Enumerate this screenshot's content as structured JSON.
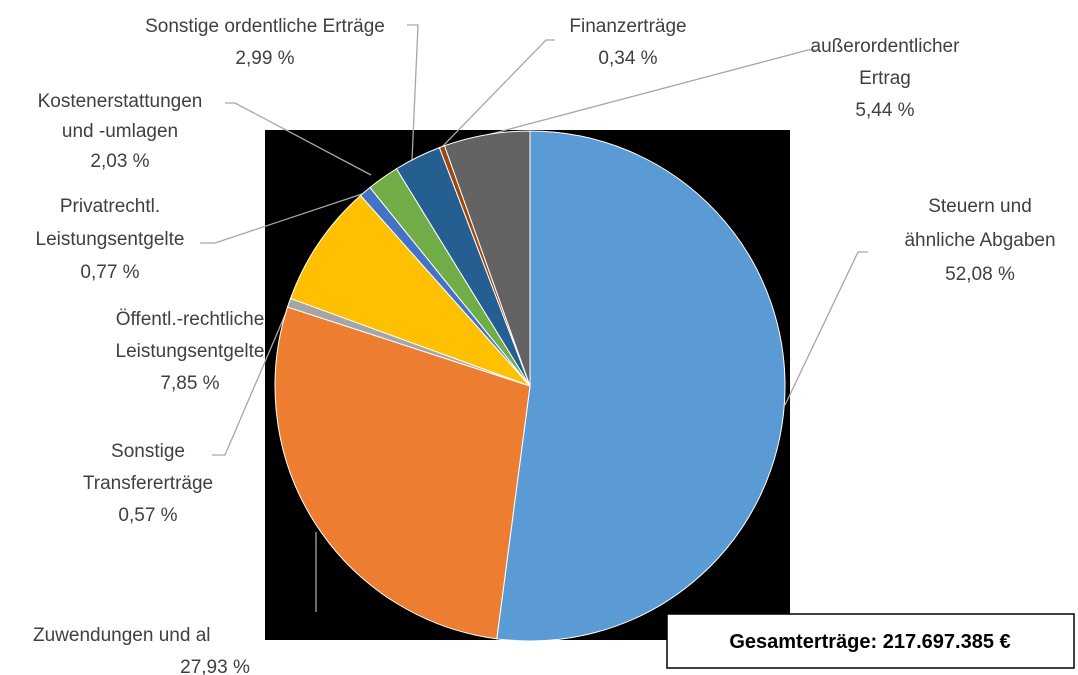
{
  "chart_data": {
    "type": "pie",
    "categories": [
      [
        "Steuern und",
        "ähnliche Abgaben"
      ],
      [
        "Zuwendungen und al"
      ],
      [
        "Sonstige",
        "Transfererträge"
      ],
      [
        "Öffentl.-rechtliche",
        "Leistungsentgelte"
      ],
      [
        "Privatrechtl.",
        "Leistungsentgelte"
      ],
      [
        "Kostenerstattungen",
        "und -umlagen"
      ],
      [
        "Sonstige ordentliche Erträge"
      ],
      [
        "Finanzerträge"
      ],
      [
        "außerordentlicher",
        "Ertrag"
      ]
    ],
    "values": [
      52.08,
      27.93,
      0.57,
      7.85,
      0.77,
      2.03,
      2.99,
      0.34,
      5.44
    ],
    "value_labels": [
      "52,08 %",
      "27,93 %",
      "0,57 %",
      "7,85 %",
      "0,77 %",
      "2,03 %",
      "2,99 %",
      "0,34 %",
      "5,44 %"
    ],
    "colors": [
      "#5b9bd5",
      "#ed7d31",
      "#a5a5a5",
      "#ffc000",
      "#4472c4",
      "#70ad47",
      "#255e91",
      "#9e480e",
      "#636363"
    ],
    "annotation": "Gesamterträge: 217.697.385 €"
  }
}
